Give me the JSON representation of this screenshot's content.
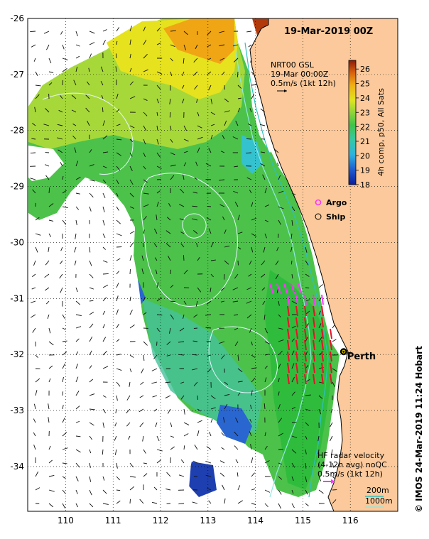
{
  "title": "19-Mar-2019 00Z",
  "credit": "© IMOS 24-Mar-2019 11:24 Hobart",
  "city": {
    "name": "Perth",
    "lon": 115.86,
    "lat": -31.95
  },
  "axes": {
    "lon_range": [
      109.2,
      117.0
    ],
    "lat_range": [
      -34.8,
      -26.0
    ],
    "lon_ticks": [
      "110",
      "111",
      "112",
      "113",
      "114",
      "115",
      "116"
    ],
    "lat_ticks": [
      "-26",
      "-27",
      "-28",
      "-29",
      "-30",
      "-31",
      "-32",
      "-33",
      "-34"
    ]
  },
  "gsl_note": {
    "line1": "NRT00 GSL",
    "line2": "19-Mar 00:00Z",
    "line3": "0.5m/s (1kt 12h)"
  },
  "colorbar": {
    "label": "4h comp, p50, All Sats",
    "ticks": [
      "18",
      "19",
      "20",
      "21",
      "22",
      "23",
      "24",
      "25",
      "26"
    ],
    "min": 18,
    "max": 26.6
  },
  "legend": {
    "argo": "Argo",
    "ship": "Ship"
  },
  "hf_note": {
    "line1": "HF radar velocity",
    "line2": "(4-12h avg) noQC",
    "line3": "0.5m/s (1kt 12h)"
  },
  "bathy": {
    "a": "200m",
    "b": "1000m"
  },
  "colors": {
    "land": "#fbc99b",
    "argo": "#ff33ff",
    "radar": "#e8102a",
    "bathy200": "#30c0c0",
    "bathy1000": "#90e8e0"
  }
}
